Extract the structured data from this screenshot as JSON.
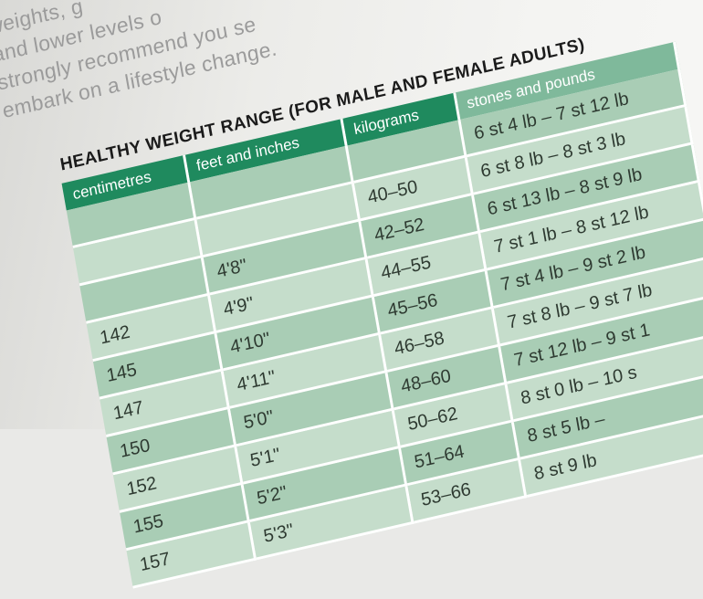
{
  "intro": {
    "lines": [
      "weights, g",
      "and lower levels o",
      "strongly recommend you se",
      "embark on a lifestyle change."
    ]
  },
  "table": {
    "title": "HEALTHY WEIGHT RANGE (FOR MALE AND FEMALE ADULTS)",
    "columns": [
      "centimetres",
      "feet and inches",
      "kilograms",
      "stones and pounds"
    ],
    "rows": [
      [
        "",
        "",
        "",
        "6 st 4 lb – 7 st 12 lb"
      ],
      [
        "",
        "",
        "40–50",
        "6 st 8 lb – 8 st 3 lb"
      ],
      [
        "",
        "4'8\"",
        "42–52",
        "6 st 13 lb – 8 st 9 lb"
      ],
      [
        "142",
        "4'9\"",
        "44–55",
        "7 st 1 lb – 8 st 12 lb"
      ],
      [
        "145",
        "4'10\"",
        "45–56",
        "7 st 4 lb – 9 st 2 lb"
      ],
      [
        "147",
        "4'11\"",
        "46–58",
        "7 st 8 lb – 9 st 7 lb"
      ],
      [
        "150",
        "5'0\"",
        "48–60",
        "7 st 12 lb – 9 st 1"
      ],
      [
        "152",
        "5'1\"",
        "50–62",
        "8 st 0 lb – 10 s"
      ],
      [
        "155",
        "5'2\"",
        "51–64",
        "8 st 5 lb –"
      ],
      [
        "157",
        "5'3\"",
        "53–66",
        "8 st 9 lb"
      ]
    ]
  }
}
